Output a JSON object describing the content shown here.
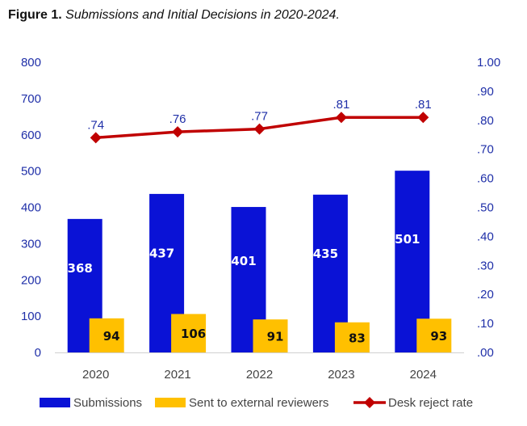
{
  "figure": {
    "label": "Figure 1.",
    "title": "Submissions and Initial Decisions in 2020-2024."
  },
  "colors": {
    "submissions": "#0a12d6",
    "external": "#ffc000",
    "rate": "#c00000",
    "axis_text": "#1f2fa8",
    "submissions_label": "#ffffff",
    "external_label": "#111111"
  },
  "chart_data": {
    "type": "bar",
    "categories": [
      "2020",
      "2021",
      "2022",
      "2023",
      "2024"
    ],
    "series": [
      {
        "name": "Submissions",
        "type": "bar",
        "axis": "left",
        "values": [
          368,
          437,
          401,
          435,
          501
        ],
        "labels": [
          "368",
          "437",
          "401",
          "435",
          "501"
        ]
      },
      {
        "name": "Sent to external reviewers",
        "type": "bar",
        "axis": "left",
        "values": [
          94,
          106,
          91,
          83,
          93
        ],
        "labels": [
          "94",
          "106",
          "91",
          "83",
          "93"
        ]
      },
      {
        "name": "Desk reject rate",
        "type": "line",
        "axis": "right",
        "marker": "diamond",
        "values": [
          0.74,
          0.76,
          0.77,
          0.81,
          0.81
        ],
        "labels": [
          ".74",
          ".76",
          ".77",
          ".81",
          ".81"
        ]
      }
    ],
    "y_left": {
      "min": 0,
      "max": 800,
      "ticks": [
        "0",
        "100",
        "200",
        "300",
        "400",
        "500",
        "600",
        "700",
        "800"
      ]
    },
    "y_right": {
      "min": 0,
      "max": 1.0,
      "ticks": [
        ".00",
        ".10",
        ".20",
        ".30",
        ".40",
        ".50",
        ".60",
        ".70",
        ".80",
        ".90",
        "1.00"
      ]
    },
    "grid": false,
    "legend_position": "bottom"
  }
}
